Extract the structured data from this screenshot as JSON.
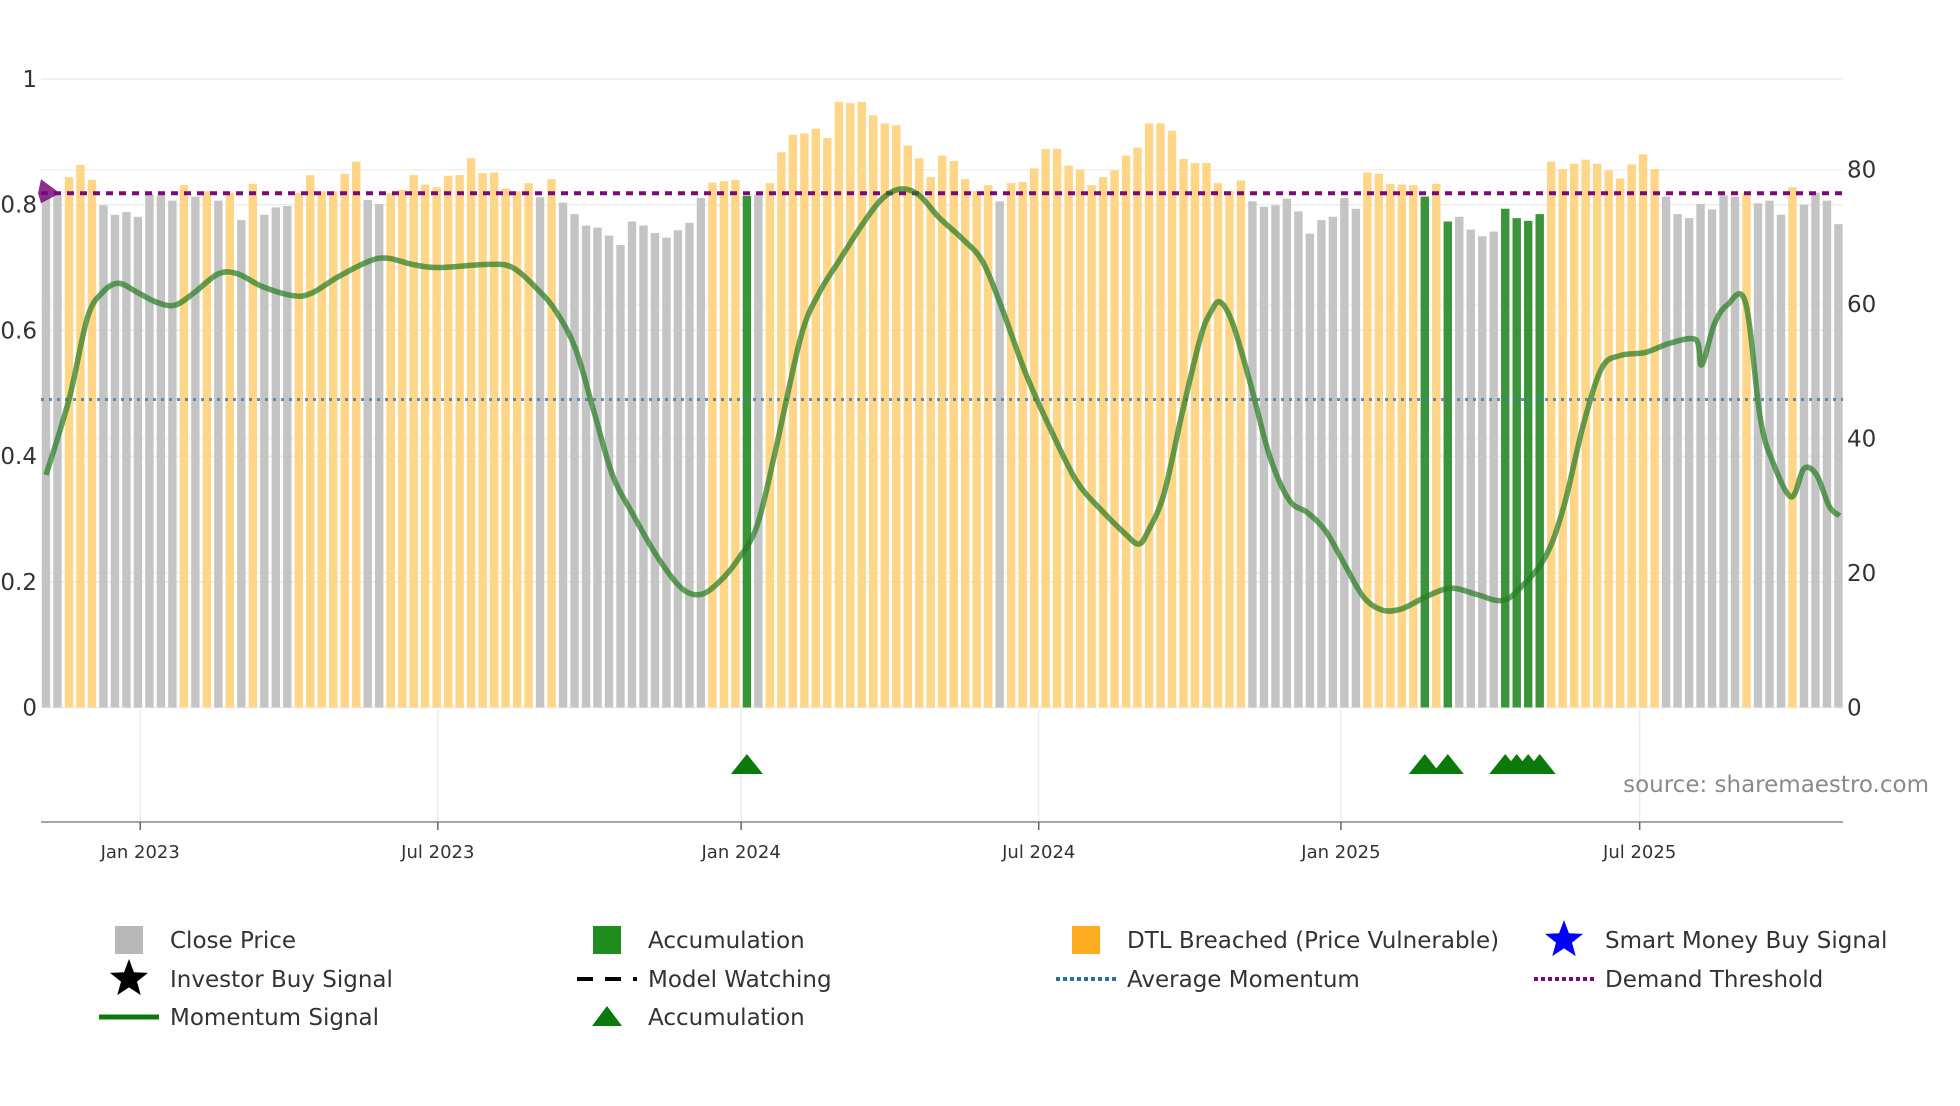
{
  "chart_data": {
    "type": "bar",
    "title": "",
    "x_unit": "week index",
    "x_ticks": [
      {
        "label": "Jan 2023",
        "at": 8.2
      },
      {
        "label": "Jul 2023",
        "at": 34.1
      },
      {
        "label": "Jan 2024",
        "at": 60.5
      },
      {
        "label": "Jul 2024",
        "at": 86.4
      },
      {
        "label": "Jan 2025",
        "at": 112.7
      },
      {
        "label": "Jul 2025",
        "at": 138.7
      }
    ],
    "left_axis": {
      "range": [
        0,
        1
      ],
      "ticks": [
        "0",
        "0.2",
        "0.4",
        "0.6",
        "0.8",
        "1"
      ],
      "tick_values": [
        0,
        0.2,
        0.4,
        0.6,
        0.8,
        1
      ]
    },
    "right_axis": {
      "range": [
        0,
        93.5
      ],
      "ticks": [
        "0",
        "20",
        "40",
        "60",
        "80"
      ],
      "tick_values": [
        0,
        20,
        40,
        60,
        80
      ]
    },
    "close_price": [
      75.9,
      76.2,
      78.9,
      80.7,
      78.5,
      74.7,
      73.3,
      73.7,
      73.0,
      76.4,
      76.2,
      75.4,
      77.7,
      76.0,
      76.8,
      75.4,
      76.6,
      72.5,
      77.9,
      73.3,
      74.4,
      74.6,
      76.5,
      79.2,
      76.8,
      76.8,
      79.4,
      81.2,
      75.5,
      74.9,
      76.5,
      77.0,
      79.2,
      77.8,
      77.4,
      79.1,
      79.2,
      81.7,
      79.5,
      79.6,
      77.2,
      76.8,
      78.0,
      75.9,
      78.6,
      75.1,
      73.4,
      71.7,
      71.4,
      70.2,
      68.8,
      72.3,
      71.7,
      70.6,
      69.9,
      71.0,
      72.1,
      75.8,
      78.1,
      78.3,
      78.5,
      76.1,
      76.3,
      78.0,
      82.6,
      85.2,
      85.4,
      86.1,
      84.7,
      90.1,
      89.9,
      90.1,
      88.1,
      86.9,
      86.6,
      83.6,
      81.7,
      78.9,
      82.1,
      81.3,
      78.6,
      76.8,
      77.7,
      75.3,
      78.0,
      78.2,
      80.2,
      83.1,
      83.1,
      80.6,
      80.0,
      77.7,
      78.9,
      79.9,
      82.1,
      83.3,
      86.9,
      86.9,
      85.8,
      81.6,
      81.0,
      81.0,
      78.0,
      76.8,
      78.4,
      75.3,
      74.5,
      74.7,
      75.7,
      73.8,
      70.5,
      72.5,
      73.0,
      75.8,
      74.2,
      79.6,
      79.4,
      77.9,
      77.8,
      77.7,
      76.0,
      77.9,
      72.3,
      73.0,
      71.1,
      70.1,
      70.8,
      74.2,
      72.8,
      72.4,
      73.4,
      81.2,
      80.1,
      80.9,
      81.5,
      80.9,
      79.9,
      78.7,
      80.8,
      82.3,
      80.1,
      76.0,
      73.4,
      72.8,
      74.9,
      74.1,
      76.2,
      76.0,
      76.6,
      75.0,
      75.4,
      73.3,
      77.4,
      74.8,
      76.6,
      75.4,
      71.9
    ],
    "bar_state_runs": [
      [
        "g",
        2
      ],
      [
        "o",
        3
      ],
      [
        "g",
        7
      ],
      [
        "o",
        1
      ],
      [
        "g",
        1
      ],
      [
        "o",
        1
      ],
      [
        "g",
        1
      ],
      [
        "o",
        1
      ],
      [
        "g",
        1
      ],
      [
        "o",
        1
      ],
      [
        "g",
        3
      ],
      [
        "o",
        6
      ],
      [
        "g",
        2
      ],
      [
        "o",
        13
      ],
      [
        "g",
        1
      ],
      [
        "o",
        1
      ],
      [
        "g",
        13
      ],
      [
        "o",
        3
      ],
      [
        "a",
        1
      ],
      [
        "g",
        1
      ],
      [
        "o",
        20
      ],
      [
        "g",
        1
      ],
      [
        "o",
        21
      ],
      [
        "g",
        10
      ],
      [
        "o",
        5
      ],
      [
        "a",
        1
      ],
      [
        "o",
        1
      ],
      [
        "a",
        1
      ],
      [
        "g",
        4
      ],
      [
        "a",
        4
      ],
      [
        "o",
        10
      ],
      [
        "g",
        7
      ],
      [
        "o",
        1
      ],
      [
        "g",
        3
      ],
      [
        "o",
        1
      ],
      [
        "g",
        4
      ]
    ],
    "bar_state_legend": {
      "g": "Close Price",
      "o": "DTL Breached (Price Vulnerable)",
      "a": "Accumulation"
    },
    "momentum_signal": [
      [
        0,
        0.37
      ],
      [
        2.0,
        0.49
      ],
      [
        3.6,
        0.62
      ],
      [
        4.9,
        0.66
      ],
      [
        6.3,
        0.675
      ],
      [
        8.0,
        0.66
      ],
      [
        9.6,
        0.645
      ],
      [
        11.2,
        0.64
      ],
      [
        12.9,
        0.66
      ],
      [
        15.0,
        0.69
      ],
      [
        16.7,
        0.69
      ],
      [
        18.8,
        0.67
      ],
      [
        21.6,
        0.655
      ],
      [
        23.2,
        0.66
      ],
      [
        25.4,
        0.685
      ],
      [
        28.1,
        0.71
      ],
      [
        29.7,
        0.715
      ],
      [
        31.9,
        0.705
      ],
      [
        34.1,
        0.7
      ],
      [
        38.5,
        0.705
      ],
      [
        40.6,
        0.7
      ],
      [
        42.8,
        0.665
      ],
      [
        44.4,
        0.63
      ],
      [
        46.1,
        0.57
      ],
      [
        47.7,
        0.47
      ],
      [
        49.3,
        0.37
      ],
      [
        51.0,
        0.31
      ],
      [
        53.2,
        0.24
      ],
      [
        55.3,
        0.19
      ],
      [
        57.0,
        0.18
      ],
      [
        58.6,
        0.2
      ],
      [
        60.2,
        0.235
      ],
      [
        61.9,
        0.29
      ],
      [
        63.5,
        0.41
      ],
      [
        65.7,
        0.59
      ],
      [
        67.3,
        0.66
      ],
      [
        69.0,
        0.71
      ],
      [
        71.1,
        0.77
      ],
      [
        72.8,
        0.81
      ],
      [
        74.4,
        0.825
      ],
      [
        76.0,
        0.815
      ],
      [
        77.7,
        0.78
      ],
      [
        79.8,
        0.745
      ],
      [
        81.5,
        0.71
      ],
      [
        83.1,
        0.64
      ],
      [
        85.3,
        0.53
      ],
      [
        87.5,
        0.44
      ],
      [
        89.7,
        0.36
      ],
      [
        91.8,
        0.315
      ],
      [
        94.0,
        0.275
      ],
      [
        95.1,
        0.26
      ],
      [
        95.9,
        0.28
      ],
      [
        97.3,
        0.34
      ],
      [
        98.9,
        0.47
      ],
      [
        100.5,
        0.59
      ],
      [
        101.4,
        0.63
      ],
      [
        102.2,
        0.645
      ],
      [
        103.3,
        0.61
      ],
      [
        104.9,
        0.51
      ],
      [
        106.5,
        0.4
      ],
      [
        108.2,
        0.33
      ],
      [
        109.8,
        0.31
      ],
      [
        111.4,
        0.28
      ],
      [
        113.1,
        0.225
      ],
      [
        114.7,
        0.175
      ],
      [
        116.3,
        0.155
      ],
      [
        118.0,
        0.157
      ],
      [
        120.2,
        0.177
      ],
      [
        122.3,
        0.19
      ],
      [
        124.5,
        0.18
      ],
      [
        126.7,
        0.17
      ],
      [
        128.3,
        0.19
      ],
      [
        130.5,
        0.24
      ],
      [
        132.1,
        0.32
      ],
      [
        133.8,
        0.45
      ],
      [
        135.4,
        0.54
      ],
      [
        137.0,
        0.56
      ],
      [
        139.2,
        0.565
      ],
      [
        141.4,
        0.58
      ],
      [
        143.6,
        0.585
      ],
      [
        144.1,
        0.545
      ],
      [
        145.2,
        0.61
      ],
      [
        146.3,
        0.64
      ],
      [
        147.9,
        0.645
      ],
      [
        149.2,
        0.46
      ],
      [
        150.3,
        0.39
      ],
      [
        151.9,
        0.335
      ],
      [
        153.0,
        0.38
      ],
      [
        154.1,
        0.37
      ],
      [
        155.2,
        0.32
      ],
      [
        156.1,
        0.305
      ]
    ],
    "average_momentum": 0.49,
    "demand_threshold": 76.5,
    "accumulation_markers": [
      61,
      120,
      122,
      127,
      128,
      129,
      130
    ],
    "legend_placement": "bottom",
    "legend": [
      {
        "label": "Close Price",
        "symbol": "gray-square"
      },
      {
        "label": "Accumulation",
        "symbol": "green-square"
      },
      {
        "label": "DTL Breached (Price Vulnerable)",
        "symbol": "orange-square"
      },
      {
        "label": "Smart Money Buy Signal",
        "symbol": "blue-star"
      },
      {
        "label": "Investor Buy Signal",
        "symbol": "black-star"
      },
      {
        "label": "Model Watching",
        "symbol": "black-dashed-line"
      },
      {
        "label": "Average Momentum",
        "symbol": "blue-dotted-line"
      },
      {
        "label": "Demand Threshold",
        "symbol": "purple-dotted-line"
      },
      {
        "label": "Momentum Signal",
        "symbol": "green-line"
      },
      {
        "label": "Accumulation",
        "symbol": "green-triangle"
      }
    ],
    "source": "source: sharemaestro.com",
    "colors": {
      "gray": "#c4c4c4",
      "orange": "#ffd587",
      "accumulation": "#2f8f2f",
      "momentum": "#2a7d22",
      "avg": "#4a7fa8",
      "threshold": "#7a0a7a",
      "blue_star": "#0000ff"
    }
  }
}
